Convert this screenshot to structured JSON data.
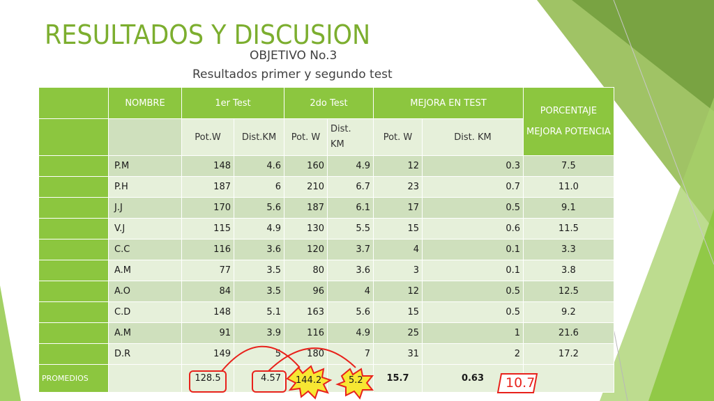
{
  "slide": {
    "title": "RESULTADOS Y DISCUSION",
    "subtitle1": "OBJETIVO No.3",
    "subtitle2": "Resultados primer y segundo test"
  },
  "table": {
    "headers": {
      "nombre": "NOMBRE",
      "test1": "1er Test",
      "test2": "2do Test",
      "mejora": "MEJORA EN TEST",
      "porcentaje_line1": "PORCENTAJE",
      "porcentaje_line2": "MEJORA POTENCIA"
    },
    "subheaders": {
      "pot1": "Pot.W",
      "dist1": "Dist.KM",
      "pot2": "Pot. W",
      "dist2_line1": "Dist.",
      "dist2_line2": "KM",
      "pot3": "Pot. W",
      "dist3": "Dist.  KM"
    },
    "rows": [
      [
        "P.M",
        "148",
        "4.6",
        "160",
        "4.9",
        "12",
        "0.3",
        "7.5"
      ],
      [
        "P.H",
        "187",
        "6",
        "210",
        "6.7",
        "23",
        "0.7",
        "11.0"
      ],
      [
        "J.J",
        "170",
        "5.6",
        "187",
        "6.1",
        "17",
        "0.5",
        "9.1"
      ],
      [
        "V.J",
        "115",
        "4.9",
        "130",
        "5.5",
        "15",
        "0.6",
        "11.5"
      ],
      [
        "C.C",
        "116",
        "3.6",
        "120",
        "3.7",
        "4",
        "0.1",
        "3.3"
      ],
      [
        "A.M",
        "77",
        "3.5",
        "80",
        "3.6",
        "3",
        "0.1",
        "3.8"
      ],
      [
        "A.O",
        "84",
        "3.5",
        "96",
        "4",
        "12",
        "0.5",
        "12.5"
      ],
      [
        "C.D",
        "148",
        "5.1",
        "163",
        "5.6",
        "15",
        "0.5",
        "9.2"
      ],
      [
        "A.M",
        "91",
        "3.9",
        "116",
        "4.9",
        "25",
        "1",
        "21.6"
      ],
      [
        "D.R",
        "149",
        "5",
        "180",
        "7",
        "31",
        "2",
        "17.2"
      ]
    ],
    "promedios": {
      "label": "PROMEDIOS",
      "pot1": "128.5",
      "dist1": "4.57",
      "pot2": "144.2",
      "dist2": "5.2",
      "pot_mejora": "15.7",
      "dist_mejora": "0.63",
      "porcentaje": "10.7"
    }
  },
  "colors": {
    "accent_green": "#8cc63f",
    "title_green": "#7cae2f",
    "annotation_red": "#e8211b",
    "burst_yellow": "#f7e733"
  }
}
